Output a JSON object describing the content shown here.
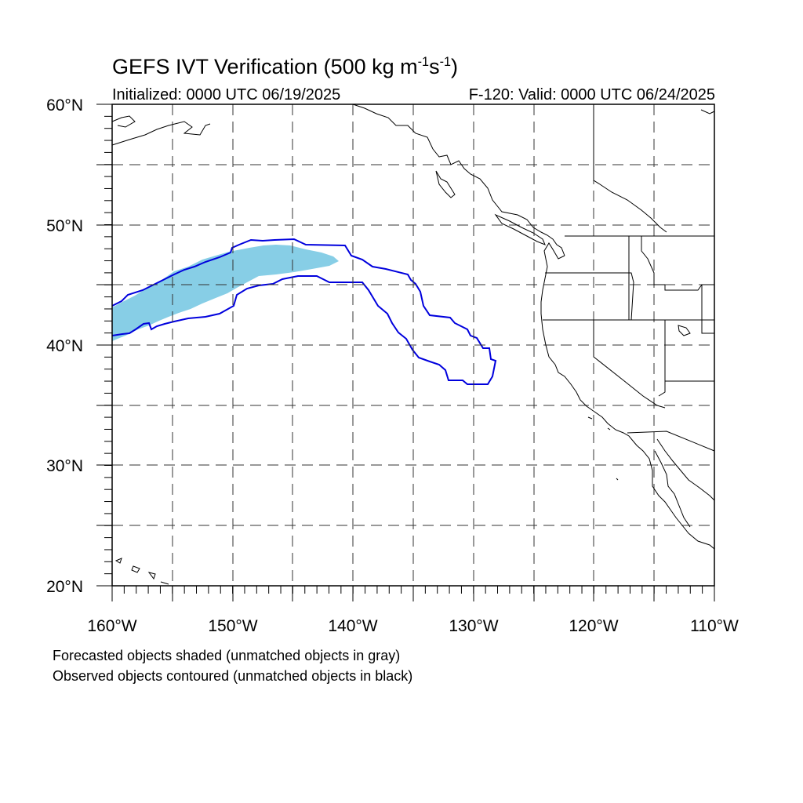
{
  "header": {
    "title_main": "GEFS IVT Verification (500 kg m",
    "title_exp1": "-1",
    "title_mid": "s",
    "title_exp2": "-1",
    "title_end": ")",
    "initialized": "Initialized: 0000 UTC 06/19/2025",
    "valid": "F-120: Valid: 0000 UTC 06/24/2025"
  },
  "map": {
    "lat_labels": [
      "60°N",
      "50°N",
      "40°N",
      "30°N",
      "20°N"
    ],
    "lon_labels": [
      "160°W",
      "150°W",
      "140°W",
      "130°W",
      "120°W",
      "110°W"
    ],
    "extent": {
      "lon_min": -160,
      "lon_max": -110,
      "lat_min": 20,
      "lat_max": 60
    },
    "forecast_color": "#87CEE6",
    "observed_color": "#0000DD",
    "forecast_object": {
      "name": "forecast IVT object",
      "approx_lon_range": [
        -160,
        -141
      ],
      "approx_lat_range": [
        41,
        48
      ]
    },
    "observed_object": {
      "name": "observed IVT object",
      "approx_lon_range": [
        -160,
        -128
      ],
      "approx_lat_range": [
        37,
        49
      ]
    }
  },
  "footer": {
    "note1": "Forecasted objects shaded (unmatched objects in gray)",
    "note2": "Observed objects contoured (unmatched objects in black)"
  }
}
